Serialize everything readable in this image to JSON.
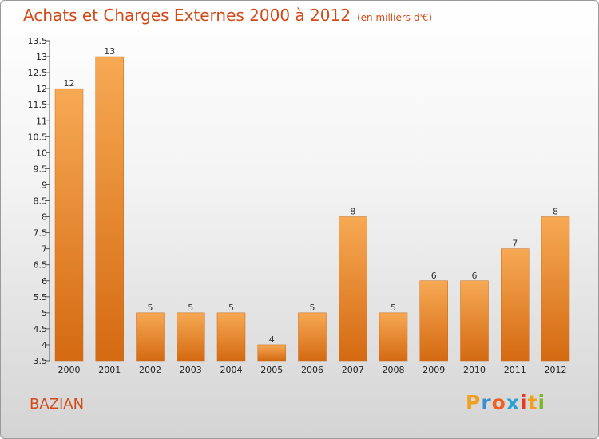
{
  "header": {
    "title": "Achats et Charges Externes 2000 à 2012",
    "unit": "(en milliers d'€)"
  },
  "footer": {
    "commune": "BAZIAN",
    "logo": {
      "letters": [
        "P",
        "r",
        "o",
        "x",
        "i",
        "t",
        "i"
      ],
      "colors": [
        "#f0a020",
        "#3a8fd0",
        "#f06020",
        "#2aa0d8",
        "#e63a20",
        "#f0a020",
        "#7ab82a"
      ]
    }
  },
  "colors": {
    "bar": "#f08a2a",
    "bar_light": "#f7a954",
    "bar_dark": "#d46a12",
    "text_accent": "#d24a18"
  },
  "chart_data": {
    "type": "bar",
    "categories": [
      "2000",
      "2001",
      "2002",
      "2003",
      "2004",
      "2005",
      "2006",
      "2007",
      "2008",
      "2009",
      "2010",
      "2011",
      "2012"
    ],
    "values": [
      12,
      13,
      5,
      5,
      5,
      4,
      5,
      8,
      5,
      6,
      6,
      7,
      8
    ],
    "data_labels": [
      "12",
      "13",
      "5",
      "5",
      "5",
      "4",
      "5",
      "8",
      "5",
      "6",
      "6",
      "7",
      "8"
    ],
    "title": "Achats et Charges Externes 2000 à 2012",
    "xlabel": "",
    "ylabel": "",
    "ylim": [
      3.5,
      13.5
    ],
    "yticks": [
      3.5,
      4,
      4.5,
      5,
      5.5,
      6,
      6.5,
      7,
      7.5,
      8,
      8.5,
      9,
      9.5,
      10,
      10.5,
      11,
      11.5,
      12,
      12.5,
      13,
      13.5
    ],
    "ytick_labels": [
      "3.5",
      "4",
      "4.5",
      "5",
      "5.5",
      "6",
      "6.5",
      "7",
      "7.5",
      "8",
      "8.5",
      "9",
      "9.5",
      "10",
      "10.5",
      "11",
      "11.5",
      "12",
      "12.5",
      "13",
      "13.5"
    ],
    "grid": false,
    "legend": "none"
  }
}
